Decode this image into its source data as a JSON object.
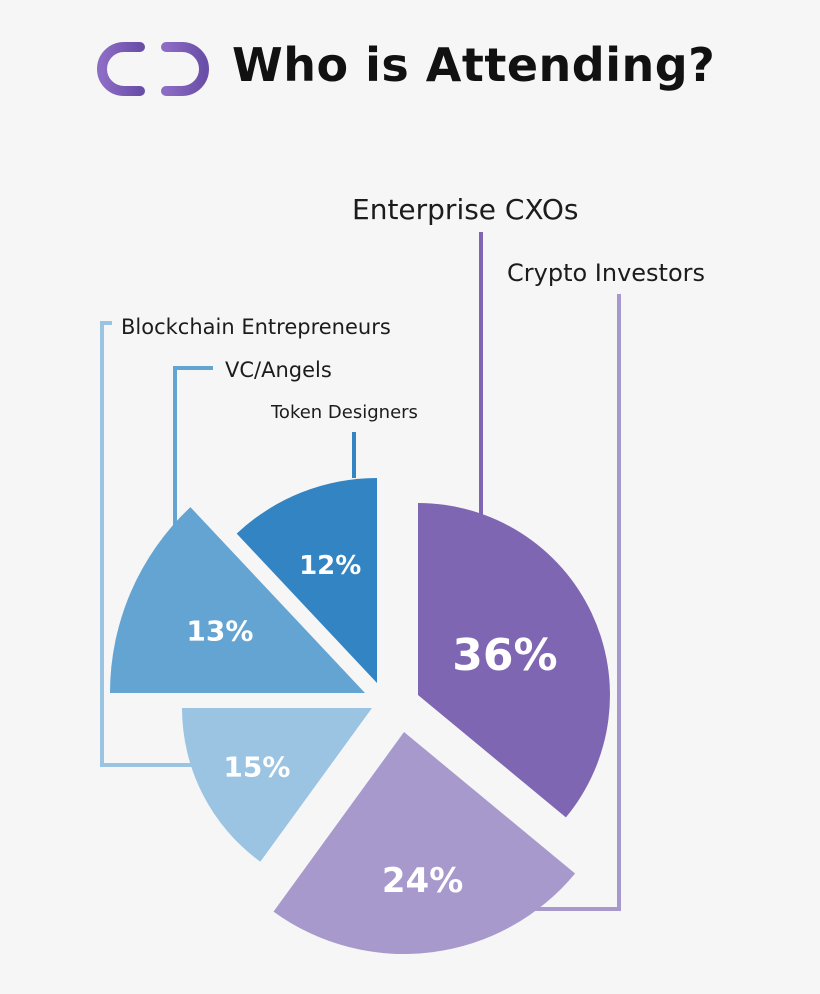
{
  "header": {
    "title": "Who is Attending?",
    "logo_icon": "link-icon"
  },
  "chart_data": {
    "type": "pie",
    "title": "Who is Attending?",
    "unit": "%",
    "legend_placement": "callout-labels",
    "slices": [
      {
        "name": "Enterprise CXOs",
        "value": 36,
        "label": "36%",
        "color": "#7f66b2"
      },
      {
        "name": "Crypto Investors",
        "value": 24,
        "label": "24%",
        "color": "#a899cd"
      },
      {
        "name": "Blockchain Entrepreneurs",
        "value": 15,
        "label": "15%",
        "color": "#9bc3e2"
      },
      {
        "name": "VC/Angels",
        "value": 13,
        "label": "13%",
        "color": "#64a4d2"
      },
      {
        "name": "Token Designers",
        "value": 12,
        "label": "12%",
        "color": "#3384c3"
      }
    ]
  }
}
